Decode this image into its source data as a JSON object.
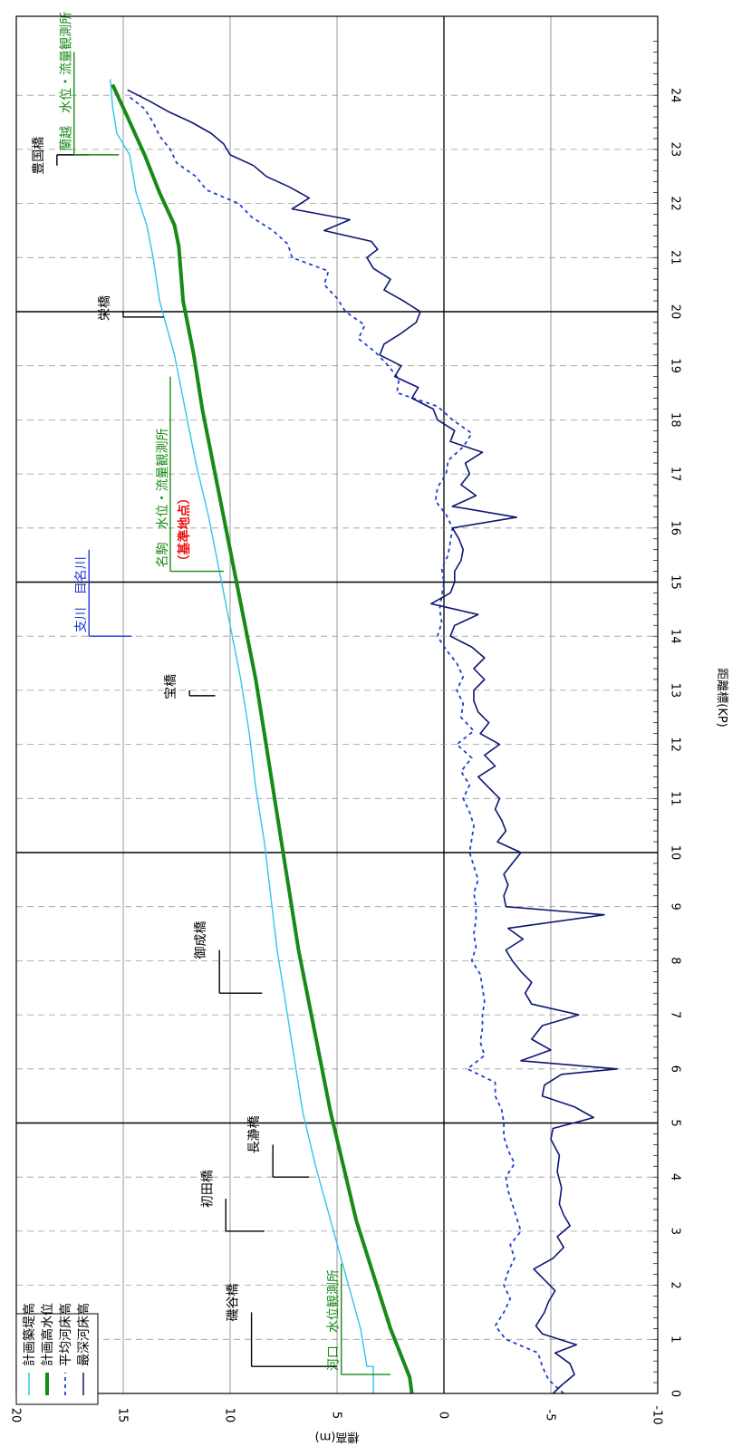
{
  "chart_data": {
    "type": "line",
    "orientation": "rotated-90-clockwise",
    "xlabel": "距離標(KP)",
    "ylabel": "標高(m)",
    "xlim": [
      0,
      25
    ],
    "ylim": [
      -10,
      20
    ],
    "x_ticks": [
      "0",
      "1",
      "2",
      "3",
      "4",
      "5",
      "6",
      "7",
      "8",
      "9",
      "10",
      "11",
      "12",
      "13",
      "14",
      "15",
      "16",
      "17",
      "18",
      "19",
      "20",
      "21",
      "22",
      "23",
      "24"
    ],
    "y_ticks": [
      "-10",
      "-5",
      "0",
      "5",
      "10",
      "15",
      "20"
    ],
    "grid": true,
    "legend_position": "top-left",
    "series": [
      {
        "name": "計画築堤高",
        "color": "#33c4ea",
        "style": "solid-thin",
        "x": [
          0,
          0.5,
          0.5,
          1.2,
          2.2,
          3.2,
          4.2,
          5.2,
          6.2,
          7.2,
          8.2,
          9.2,
          10.2,
          11.2,
          12.2,
          13.2,
          14.2,
          15.2,
          16.2,
          17.2,
          18.2,
          19.2,
          20.2,
          21.0,
          21.6,
          22.2,
          22.9,
          23.3,
          23.8,
          24.3
        ],
        "y": [
          3.3,
          3.3,
          3.6,
          3.9,
          4.6,
          5.3,
          6.0,
          6.6,
          7.0,
          7.4,
          7.8,
          8.1,
          8.4,
          8.8,
          9.1,
          9.5,
          10.0,
          10.5,
          11.0,
          11.6,
          12.1,
          12.6,
          13.3,
          13.6,
          13.9,
          14.4,
          14.7,
          15.3,
          15.5,
          15.6
        ]
      },
      {
        "name": "計画高水位",
        "color": "#178a17",
        "style": "solid-thick",
        "x": [
          0,
          0.3,
          1.2,
          2.2,
          3.2,
          4.2,
          5.2,
          6.2,
          7.2,
          8.2,
          9.2,
          10.2,
          11.2,
          12.2,
          13.2,
          14.2,
          15.2,
          16.2,
          17.2,
          18.2,
          19.2,
          20.2,
          21.2,
          21.6,
          22.2,
          22.9,
          23.6,
          24.2
        ],
        "y": [
          1.5,
          1.6,
          2.5,
          3.3,
          4.1,
          4.7,
          5.3,
          5.8,
          6.3,
          6.8,
          7.2,
          7.6,
          8.0,
          8.4,
          8.8,
          9.3,
          9.8,
          10.3,
          10.8,
          11.3,
          11.7,
          12.2,
          12.4,
          12.6,
          13.3,
          14.0,
          14.8,
          15.5
        ]
      },
      {
        "name": "平均河床高",
        "color": "#1f3fd0",
        "style": "dotted",
        "x": [
          0.0,
          0.25,
          0.5,
          0.75,
          1.0,
          1.25,
          1.5,
          1.75,
          2.0,
          2.25,
          2.5,
          2.75,
          3.0,
          3.25,
          3.5,
          3.75,
          4.0,
          4.25,
          4.5,
          4.75,
          5.0,
          5.25,
          5.5,
          5.75,
          6.0,
          6.25,
          6.5,
          6.75,
          7.0,
          7.25,
          7.5,
          7.75,
          8.0,
          8.25,
          8.5,
          8.75,
          9.0,
          9.25,
          9.5,
          9.75,
          10.0,
          10.25,
          10.5,
          10.75,
          11.0,
          11.25,
          11.5,
          11.75,
          12.0,
          12.25,
          12.5,
          12.75,
          13.0,
          13.25,
          13.5,
          13.75,
          14.0,
          14.25,
          14.5,
          14.75,
          15.0,
          15.25,
          15.5,
          15.75,
          16.0,
          16.25,
          16.5,
          16.75,
          17.0,
          17.25,
          17.5,
          17.75,
          18.0,
          18.25,
          18.5,
          18.75,
          19.0,
          19.25,
          19.5,
          19.75,
          20.0,
          20.25,
          20.5,
          20.75,
          21.0,
          21.25,
          21.5,
          21.75,
          22.0,
          22.25,
          22.5,
          22.75,
          23.0,
          23.25,
          23.5,
          23.75,
          24.0
        ],
        "y": [
          -5.6,
          -4.9,
          -4.6,
          -4.4,
          -2.9,
          -2.4,
          -2.8,
          -3.1,
          -2.8,
          -3.0,
          -3.3,
          -3.1,
          -3.6,
          -3.4,
          -3.2,
          -3.0,
          -2.9,
          -3.3,
          -3.0,
          -2.8,
          -2.8,
          -2.7,
          -2.4,
          -2.4,
          -1.1,
          -1.9,
          -1.7,
          -1.8,
          -1.8,
          -1.9,
          -1.8,
          -1.7,
          -1.3,
          -1.5,
          -1.4,
          -1.5,
          -1.5,
          -1.4,
          -1.6,
          -1.4,
          -1.2,
          -1.3,
          -1.4,
          -1.2,
          -0.9,
          -1.2,
          -0.8,
          -1.3,
          -0.6,
          -1.4,
          -0.8,
          -0.9,
          -0.6,
          -0.9,
          -0.6,
          -0.1,
          0.3,
          0.1,
          0.2,
          0.1,
          0.0,
          0.1,
          -0.2,
          -0.3,
          -0.4,
          -0.1,
          0.4,
          0.3,
          -0.1,
          -0.2,
          -0.9,
          -1.3,
          -0.4,
          0.3,
          2.2,
          2.1,
          2.6,
          3.2,
          4.0,
          3.7,
          4.6,
          5.0,
          5.6,
          5.4,
          7.1,
          7.3,
          8.0,
          9.0,
          9.6,
          11.1,
          11.6,
          12.5,
          12.8,
          13.3,
          13.6,
          14.0,
          14.8
        ]
      },
      {
        "name": "最深河床高",
        "color": "#0d1673",
        "style": "solid",
        "x": [
          0.0,
          0.15,
          0.35,
          0.55,
          0.75,
          0.9,
          1.1,
          1.25,
          1.5,
          1.7,
          1.9,
          2.1,
          2.3,
          2.5,
          2.7,
          2.9,
          3.1,
          3.3,
          3.5,
          3.8,
          4.1,
          4.4,
          4.7,
          4.9,
          5.1,
          5.3,
          5.5,
          5.7,
          5.9,
          6.0,
          6.15,
          6.35,
          6.55,
          6.8,
          7.0,
          7.2,
          7.4,
          7.6,
          7.8,
          8.0,
          8.2,
          8.4,
          8.6,
          8.85,
          9.0,
          9.2,
          9.4,
          9.6,
          9.8,
          10.0,
          10.2,
          10.4,
          10.6,
          10.8,
          11.0,
          11.2,
          11.4,
          11.6,
          11.8,
          12.0,
          12.2,
          12.4,
          12.6,
          12.8,
          13.0,
          13.2,
          13.4,
          13.6,
          13.8,
          14.0,
          14.2,
          14.4,
          14.6,
          14.8,
          15.0,
          15.2,
          15.4,
          15.6,
          15.8,
          16.0,
          16.2,
          16.4,
          16.6,
          16.8,
          17.0,
          17.2,
          17.4,
          17.6,
          17.8,
          18.0,
          18.2,
          18.4,
          18.6,
          18.8,
          19.0,
          19.2,
          19.4,
          19.6,
          19.8,
          20.0,
          20.2,
          20.4,
          20.6,
          20.8,
          21.0,
          21.15,
          21.3,
          21.5,
          21.7,
          21.9,
          22.1,
          22.3,
          22.5,
          22.7,
          22.9,
          23.1,
          23.3,
          23.5,
          23.7,
          23.9,
          24.1
        ],
        "y": [
          -5.1,
          -5.5,
          -6.1,
          -5.9,
          -5.2,
          -6.2,
          -4.6,
          -4.3,
          -4.7,
          -4.9,
          -5.2,
          -4.7,
          -4.2,
          -5.1,
          -5.6,
          -5.3,
          -5.9,
          -5.6,
          -5.4,
          -5.5,
          -5.3,
          -5.4,
          -5.0,
          -5.1,
          -7.0,
          -6.1,
          -4.6,
          -4.7,
          -5.5,
          -8.1,
          -3.6,
          -5.0,
          -4.1,
          -4.6,
          -6.3,
          -4.1,
          -3.8,
          -4.1,
          -3.6,
          -3.2,
          -2.9,
          -3.7,
          -3.0,
          -7.5,
          -2.9,
          -2.8,
          -3.0,
          -2.8,
          -3.2,
          -3.6,
          -2.5,
          -2.9,
          -2.7,
          -2.4,
          -2.6,
          -2.1,
          -1.6,
          -2.4,
          -1.9,
          -2.6,
          -1.7,
          -2.1,
          -1.6,
          -1.4,
          -1.4,
          -1.9,
          -1.4,
          -1.9,
          -1.3,
          -0.3,
          -0.5,
          -1.6,
          0.6,
          -0.3,
          -0.5,
          -0.5,
          -0.8,
          -0.9,
          -0.7,
          -0.4,
          -3.4,
          -0.4,
          -1.5,
          -0.8,
          -1.2,
          -1.0,
          -1.8,
          -0.3,
          -0.5,
          0.3,
          0.5,
          1.5,
          1.2,
          2.3,
          2.0,
          3.0,
          2.8,
          2.0,
          1.3,
          1.1,
          1.9,
          2.8,
          2.5,
          3.3,
          3.6,
          3.1,
          3.4,
          5.6,
          4.4,
          7.1,
          6.3,
          7.2,
          8.3,
          8.9,
          10.0,
          10.3,
          10.9,
          11.8,
          12.9,
          13.8,
          14.8
        ]
      }
    ],
    "bridges": [
      {
        "name": "磯谷橋",
        "kp": 0.5,
        "label_kp": 1.5
      },
      {
        "name": "初田橋",
        "kp": 3.0,
        "label_kp": 3.6
      },
      {
        "name": "長瀞橋",
        "kp": 4.0,
        "label_kp": 4.6
      },
      {
        "name": "御成橋",
        "kp": 7.4,
        "label_kp": 8.2
      },
      {
        "name": "宝橋",
        "kp": 12.9,
        "label_kp": 13.0
      },
      {
        "name": "栄橋",
        "kp": 19.9,
        "label_kp": 20.0
      },
      {
        "name": "豊国橋",
        "kp": 22.9,
        "label_kp": 22.7
      }
    ],
    "stations": [
      {
        "name_parts": [
          "河口",
          "水位観測所"
        ],
        "kp": 0.35,
        "color": "#178a17"
      },
      {
        "name_parts": [
          "名駒",
          "水位・流量観測所"
        ],
        "sub": "（基準地点）",
        "kp": 15.2,
        "color": "#178a17",
        "sub_color": "#ee1111"
      },
      {
        "name_parts": [
          "蘭越",
          "水位・流量観測所"
        ],
        "kp": 22.9,
        "color": "#178a17"
      }
    ],
    "tributaries": [
      {
        "label": "支川",
        "name": "目名川",
        "kp": 14.0,
        "color": "#2233dd"
      }
    ]
  }
}
